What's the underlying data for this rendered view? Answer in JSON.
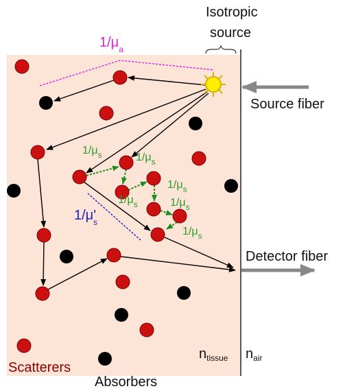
{
  "labels": {
    "isotropic_source": [
      "Isotropic",
      "source"
    ],
    "absorption_length": {
      "main": "1/μ",
      "sub": "a"
    },
    "source_fiber": "Source fiber",
    "scattering_lengths": [
      {
        "main": "1/μ",
        "sub": "s"
      },
      {
        "main": "1/μ",
        "sub": "s"
      },
      {
        "main": "1/μ",
        "sub": "s"
      },
      {
        "main": "1/μ",
        "sub": "s"
      },
      {
        "main": "1/μ",
        "sub": "s"
      },
      {
        "main": "1/μ",
        "sub": "s"
      }
    ],
    "reduced_scattering_length": {
      "main": "1/μ'",
      "sub": "s"
    },
    "detector_fiber": "Detector fiber",
    "n_tissue": {
      "main": "n",
      "sub": "tissue"
    },
    "n_air": {
      "main": "n",
      "sub": "air"
    },
    "scatterers": "Scatterers",
    "absorbers": "Absorbers"
  }
}
